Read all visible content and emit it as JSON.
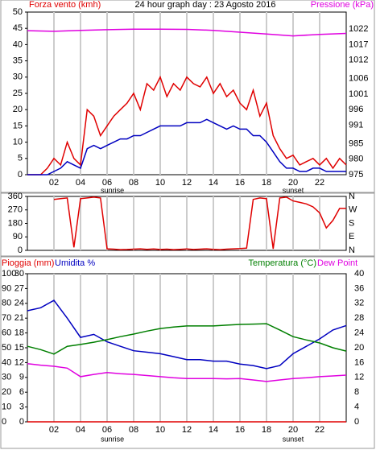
{
  "chart_data": [
    {
      "type": "line",
      "title": "24 hour graph day : 23 Agosto 2016",
      "y_label": "Forza vento (kmh)",
      "y2_label": "Pressione (kPa)",
      "sunrise_label": "sunrise",
      "sunset_label": "sunset",
      "sunrise": 6.4,
      "sunset": 20,
      "xlim": [
        0,
        24
      ],
      "xticks": [
        {
          "value": 2,
          "label": "02"
        },
        {
          "value": 4,
          "label": "04"
        },
        {
          "value": 6,
          "label": "06"
        },
        {
          "value": 8,
          "label": "08"
        },
        10,
        12,
        14,
        16,
        18,
        20,
        22
      ],
      "ylim": [
        0,
        50
      ],
      "yticks": [
        0,
        5,
        10,
        15,
        20,
        25,
        30,
        35,
        40,
        45,
        50
      ],
      "y2lim": [
        975,
        1027.5
      ],
      "y2ticks": [
        975,
        980,
        985,
        991,
        996,
        1001,
        1006,
        1012,
        1017,
        1022
      ],
      "x": [
        0,
        0.5,
        1,
        1.5,
        2,
        2.5,
        3,
        3.5,
        4,
        4.5,
        5,
        5.5,
        6,
        6.5,
        7,
        7.5,
        8,
        8.5,
        9,
        9.5,
        10,
        10.5,
        11,
        11.5,
        12,
        12.5,
        13,
        13.5,
        14,
        14.5,
        15,
        15.5,
        16,
        16.5,
        17,
        17.5,
        18,
        18.5,
        19,
        19.5,
        20,
        20.5,
        21,
        21.5,
        22,
        22.5,
        23,
        23.5,
        24
      ],
      "series": [
        {
          "color": "#e00000",
          "values": [
            0,
            0,
            0,
            2,
            5,
            3,
            10,
            5,
            3,
            20,
            18,
            12,
            15,
            18,
            20,
            22,
            25,
            20,
            28,
            26,
            30,
            24,
            28,
            26,
            30,
            28,
            27,
            30,
            25,
            28,
            24,
            26,
            22,
            20,
            26,
            18,
            22,
            12,
            8,
            5,
            6,
            3,
            4,
            5,
            3,
            5,
            2,
            5,
            3
          ]
        },
        {
          "color": "#0000c0",
          "values": [
            0,
            0,
            0,
            0,
            1,
            2,
            4,
            3,
            2,
            8,
            9,
            8,
            9,
            10,
            11,
            11,
            12,
            12,
            13,
            14,
            15,
            15,
            15,
            15,
            16,
            16,
            16,
            17,
            16,
            15,
            14,
            15,
            14,
            14,
            12,
            12,
            10,
            7,
            4,
            2,
            2,
            1,
            1,
            2,
            2,
            1,
            1,
            1,
            1
          ]
        },
        {
          "color": "#e000e0",
          "axis": "y2",
          "x": [
            0,
            2,
            4,
            6,
            8,
            10,
            12,
            14,
            16,
            18,
            20,
            22,
            24
          ],
          "values": [
            1021.5,
            1021.3,
            1021.6,
            1021.8,
            1022,
            1022,
            1021.9,
            1021.6,
            1021,
            1020.4,
            1019.8,
            1020.3,
            1020.6
          ]
        }
      ]
    },
    {
      "type": "line",
      "xlim": [
        0,
        24
      ],
      "ylim": [
        0,
        360
      ],
      "yticks": [
        0,
        90,
        180,
        270,
        360
      ],
      "y2lim": [
        0,
        360
      ],
      "y2ticks": [
        {
          "value": 0,
          "label": "N"
        },
        {
          "value": 90,
          "label": "E"
        },
        {
          "value": 180,
          "label": "S"
        },
        {
          "value": 270,
          "label": "W"
        },
        {
          "value": 360,
          "label": "N"
        }
      ],
      "x": [
        0,
        0.5,
        1,
        1.5,
        2,
        2.5,
        3,
        3.5,
        4,
        4.5,
        5,
        5.5,
        6,
        6.5,
        7,
        7.5,
        8,
        8.5,
        9,
        9.5,
        10,
        10.5,
        11,
        11.5,
        12,
        12.5,
        13,
        13.5,
        14,
        14.5,
        15,
        15.5,
        16,
        16.5,
        17,
        17.5,
        18,
        18.5,
        19,
        19.5,
        20,
        20.5,
        21,
        21.5,
        22,
        22.5,
        23,
        23.5,
        24
      ],
      "series": [
        {
          "color": "#e00000",
          "values": [
            null,
            null,
            null,
            null,
            340,
            345,
            350,
            20,
            345,
            350,
            355,
            350,
            10,
            8,
            5,
            6,
            8,
            10,
            7,
            9,
            6,
            8,
            5,
            7,
            9,
            6,
            8,
            10,
            7,
            5,
            8,
            10,
            12,
            15,
            340,
            350,
            345,
            10,
            350,
            355,
            330,
            320,
            310,
            290,
            250,
            150,
            200,
            280,
            280
          ]
        }
      ]
    },
    {
      "type": "line",
      "sunrise_label": "sunrise",
      "sunset_label": "sunset",
      "sunrise": 6.4,
      "sunset": 20,
      "xlim": [
        0,
        24
      ],
      "xticks": [
        {
          "value": 2,
          "label": "02"
        },
        {
          "value": 4,
          "label": "04"
        },
        {
          "value": 6,
          "label": "06"
        },
        {
          "value": 8,
          "label": "08"
        },
        10,
        12,
        14,
        16,
        18,
        20,
        22
      ],
      "ylim": [
        0,
        100
      ],
      "yticks": [
        0,
        10,
        20,
        30,
        40,
        50,
        60,
        70,
        80,
        90,
        100
      ],
      "y3lim": [
        0,
        30
      ],
      "y3ticks": [
        0,
        3,
        6,
        9,
        12,
        15,
        18,
        21,
        24,
        27,
        30
      ],
      "y2lim": [
        0,
        40
      ],
      "y2ticks": [
        0,
        4,
        8,
        12,
        16,
        20,
        24,
        28,
        32,
        36,
        40
      ],
      "x": [
        0,
        1,
        2,
        3,
        4,
        5,
        6,
        7,
        8,
        9,
        10,
        11,
        12,
        13,
        14,
        15,
        16,
        17,
        18,
        19,
        20,
        21,
        22,
        23,
        24
      ],
      "series": [
        {
          "name": "Pioggia (mm)",
          "color": "#e00000",
          "axis": "y3",
          "values": [
            0,
            0,
            0,
            0,
            0,
            0,
            0,
            0,
            0,
            0,
            0,
            0,
            0,
            0,
            0,
            0,
            0,
            0,
            0,
            0,
            0,
            0,
            0,
            0,
            0
          ]
        },
        {
          "name": "Umidita %",
          "color": "#0000c0",
          "values": [
            75,
            77,
            82,
            70,
            57,
            59,
            54,
            51,
            48,
            47,
            46,
            44,
            42,
            42,
            41,
            41,
            39,
            38,
            36,
            38,
            46,
            51,
            56,
            62,
            65
          ]
        },
        {
          "name": "Temperatura (°C)",
          "color": "#007f00",
          "axis": "y2",
          "values": [
            20.4,
            19.5,
            18.3,
            20.4,
            20.9,
            21.5,
            22.2,
            23,
            23.7,
            24.5,
            25.2,
            25.6,
            25.9,
            25.9,
            25.9,
            26.1,
            26.3,
            26.4,
            26.5,
            24.8,
            23,
            22.1,
            21.3,
            20,
            19.1
          ]
        },
        {
          "name": "Dew Point",
          "color": "#e000e0",
          "axis": "y2",
          "values": [
            15.7,
            15.3,
            15,
            14.5,
            12.2,
            12.8,
            13.3,
            13,
            12.8,
            12.5,
            12.2,
            11.9,
            11.7,
            11.7,
            11.7,
            11.6,
            11.7,
            11.3,
            10.9,
            11.3,
            11.7,
            11.9,
            12.2,
            12.4,
            12.6
          ]
        }
      ]
    }
  ]
}
